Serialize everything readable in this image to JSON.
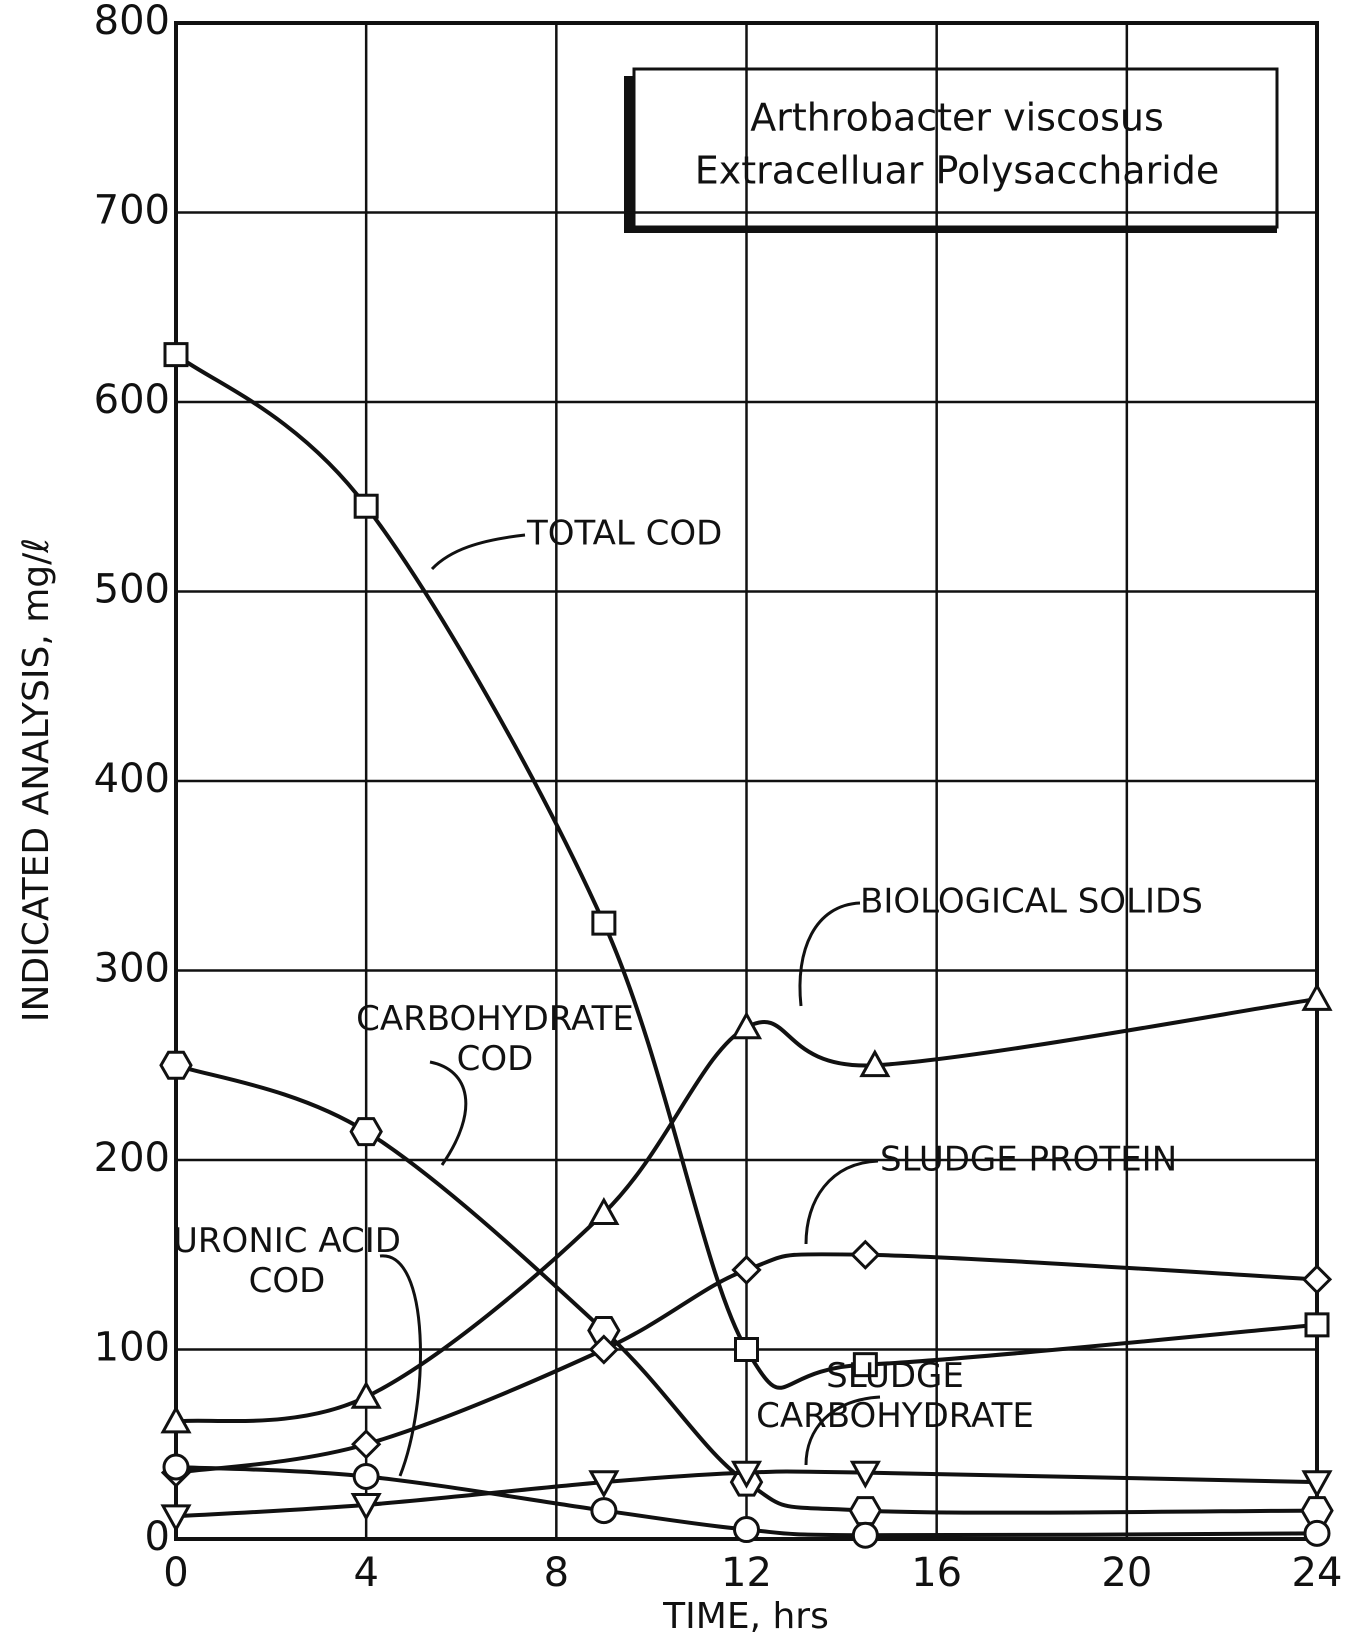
{
  "chart_data": {
    "type": "line",
    "title": [
      "Arthrobacter viscosus",
      "Extracelluar Polysaccharide"
    ],
    "xlabel": "TIME, hrs",
    "ylabel": "INDICATED ANALYSIS, mg/ℓ",
    "xlim": [
      0,
      24
    ],
    "xticks": [
      0,
      4,
      8,
      12,
      16,
      20,
      24
    ],
    "ylim": [
      0,
      800
    ],
    "yticks": [
      0,
      100,
      200,
      300,
      400,
      500,
      600,
      700,
      800
    ],
    "grid": true,
    "series": [
      {
        "name": "TOTAL COD",
        "color": "#111111",
        "marker": "square",
        "x": [
          0,
          4,
          9,
          12,
          14.5,
          24
        ],
        "values": [
          625,
          545,
          325,
          100,
          92,
          113
        ]
      },
      {
        "name": "BIOLOGICAL SOLIDS",
        "color": "#111111",
        "marker": "triangle",
        "x": [
          0,
          4,
          9,
          12,
          14.7,
          24
        ],
        "values": [
          62,
          75,
          172,
          270,
          250,
          285
        ]
      },
      {
        "name": "CARBOHYDRATE COD",
        "color": "#111111",
        "marker": "hexagon",
        "x": [
          0,
          4,
          9,
          12,
          14.5,
          24
        ],
        "values": [
          250,
          215,
          110,
          30,
          15,
          15
        ]
      },
      {
        "name": "SLUDGE PROTEIN",
        "color": "#111111",
        "marker": "diamond",
        "x": [
          0,
          4,
          9,
          12,
          14.5,
          24
        ],
        "values": [
          35,
          50,
          100,
          142,
          150,
          137
        ]
      },
      {
        "name": "URONIC ACID COD",
        "color": "#111111",
        "marker": "circle",
        "x": [
          0,
          4,
          9,
          12,
          14.5,
          24
        ],
        "values": [
          38,
          33,
          15,
          5,
          2,
          3
        ]
      },
      {
        "name": "SLUDGE CARBOHYDRATE",
        "color": "#111111",
        "marker": "invtriangle",
        "x": [
          0,
          4,
          9,
          12,
          14.5,
          24
        ],
        "values": [
          12,
          18,
          30,
          35,
          35,
          30
        ]
      }
    ]
  }
}
